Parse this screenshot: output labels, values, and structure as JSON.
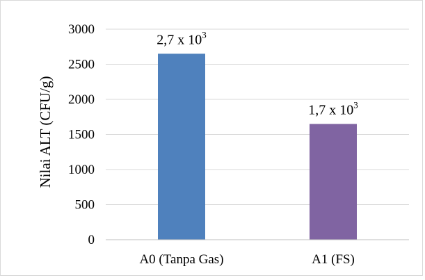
{
  "chart_data": {
    "type": "bar",
    "title": "",
    "xlabel": "",
    "ylabel": "Nilai  ALT (CFU/g)",
    "ylim": [
      0,
      3000
    ],
    "yticks": [
      0,
      500,
      1000,
      1500,
      2000,
      2500,
      3000
    ],
    "categories": [
      "A0 (Tanpa Gas)",
      "A1 (FS)"
    ],
    "values": [
      2650,
      1650
    ],
    "bar_colors": [
      "#4f81bd",
      "#8064a2"
    ],
    "data_labels": [
      {
        "base": "2,7 x 10",
        "exponent": "3"
      },
      {
        "base": "1,7 x 10",
        "exponent": "3"
      }
    ],
    "grid": true,
    "legend": "none"
  }
}
